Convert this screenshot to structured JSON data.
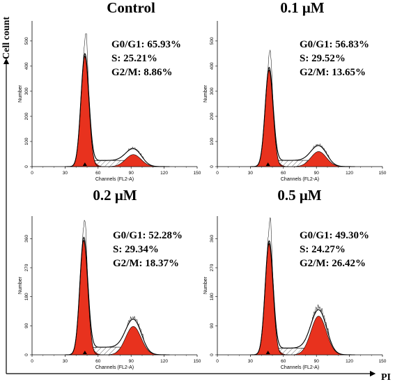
{
  "chart_data": {
    "type": "area",
    "outer_ylabel": "Cell count",
    "outer_xlabel": "PI",
    "panels": [
      {
        "title": "Control",
        "stats": [
          "G0/G1: 65.93%",
          "S: 25.21%",
          "G2/M: 8.86%"
        ],
        "g1_percent": 65.93,
        "s_percent": 25.21,
        "g2m_percent": 8.86,
        "xlabel": "Channels (FL2-A)",
        "ylabel": "Number",
        "xlim": [
          0,
          150
        ],
        "ylim": [
          0,
          580
        ],
        "xticks": [
          "0",
          "30",
          "60",
          "90",
          "120",
          "150"
        ],
        "yticks": [
          "0",
          "100",
          "200",
          "300",
          "400",
          "500"
        ],
        "g1_peak_channel": 48,
        "g1_peak_count": 440,
        "g1_max_count": 545,
        "g2_peak_channel": 92,
        "g2_peak_count": 48,
        "marker_channel": 48
      },
      {
        "title": "0.1 μM",
        "stats": [
          "G0/G1: 56.83%",
          "S: 29.52%",
          "G2/M: 13.65%"
        ],
        "g1_percent": 56.83,
        "s_percent": 29.52,
        "g2m_percent": 13.65,
        "xlabel": "Channels (FL2-A)",
        "ylabel": "Number",
        "xlim": [
          0,
          150
        ],
        "ylim": [
          0,
          580
        ],
        "xticks": [
          "0",
          "30",
          "60",
          "90",
          "120",
          "150"
        ],
        "yticks": [
          "0",
          "100",
          "200",
          "300",
          "400",
          "500"
        ],
        "g1_peak_channel": 47,
        "g1_peak_count": 385,
        "g1_max_count": 470,
        "g2_peak_channel": 92,
        "g2_peak_count": 60,
        "marker_channel": 46
      },
      {
        "title": "0.2 μM",
        "stats": [
          "G0/G1: 52.28%",
          "S: 29.34%",
          "G2/M: 18.37%"
        ],
        "g1_percent": 52.28,
        "s_percent": 29.34,
        "g2m_percent": 18.37,
        "xlabel": "Channels (FL2-A)",
        "ylabel": "Number",
        "xlim": [
          0,
          150
        ],
        "ylim": [
          0,
          430
        ],
        "xticks": [
          "0",
          "30",
          "60",
          "90",
          "120",
          "150"
        ],
        "yticks": [
          "0",
          "90",
          "180",
          "270",
          "360"
        ],
        "g1_peak_channel": 47,
        "g1_peak_count": 355,
        "g1_max_count": 425,
        "g2_peak_channel": 92,
        "g2_peak_count": 88,
        "marker_channel": 48
      },
      {
        "title": "0.5 μM",
        "stats": [
          "G0/G1: 49.30%",
          "S: 24.27%",
          "G2/M: 26.42%"
        ],
        "g1_percent": 49.3,
        "s_percent": 24.27,
        "g2m_percent": 26.42,
        "xlabel": "Channels (FL2-A)",
        "ylabel": "Number",
        "xlim": [
          0,
          150
        ],
        "ylim": [
          0,
          430
        ],
        "xticks": [
          "0",
          "30",
          "60",
          "90",
          "120",
          "150"
        ],
        "yticks": [
          "0",
          "90",
          "180",
          "270",
          "360"
        ],
        "g1_peak_channel": 47,
        "g1_peak_count": 345,
        "g1_max_count": 430,
        "g2_peak_channel": 92,
        "g2_peak_count": 120,
        "marker_channel": 46
      }
    ]
  },
  "colors": {
    "g1_fill": "#e8321e",
    "s_hatch": "#555555",
    "outline": "#000000",
    "background": "#ffffff"
  }
}
